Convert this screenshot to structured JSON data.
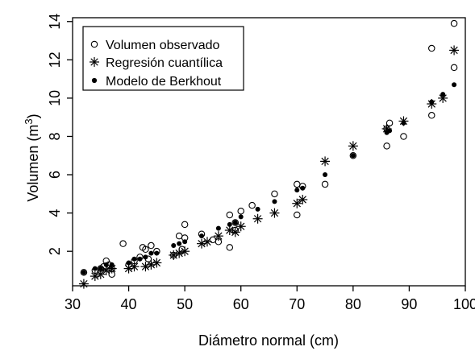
{
  "chart_data": {
    "type": "scatter",
    "xlabel": "Diámetro normal (cm)",
    "ylabel": "Volumen  (m",
    "ylabel_superscript": "3",
    "ylabel_close": ")",
    "xlim": [
      30,
      100
    ],
    "ylim": [
      0.2,
      14.2
    ],
    "x_ticks": [
      30,
      40,
      50,
      60,
      70,
      80,
      90,
      100
    ],
    "y_ticks": [
      2,
      4,
      6,
      8,
      10,
      12,
      14
    ],
    "grid": false,
    "legend_position": "top-left",
    "series": [
      {
        "name": "Volumen observado",
        "marker": "open-circle",
        "points": [
          [
            32,
            0.9
          ],
          [
            34,
            1.0
          ],
          [
            35,
            1.1
          ],
          [
            35.5,
            1.2
          ],
          [
            36,
            1.5
          ],
          [
            36.5,
            1.3
          ],
          [
            37,
            0.8
          ],
          [
            37,
            1.1
          ],
          [
            39,
            2.4
          ],
          [
            40,
            1.3
          ],
          [
            41,
            1.5
          ],
          [
            42,
            1.7
          ],
          [
            42.5,
            2.2
          ],
          [
            43,
            2.1
          ],
          [
            43.5,
            1.6
          ],
          [
            44,
            2.3
          ],
          [
            45,
            2.0
          ],
          [
            48,
            1.8
          ],
          [
            49,
            2.8
          ],
          [
            49.5,
            2.1
          ],
          [
            50,
            2.7
          ],
          [
            50,
            3.4
          ],
          [
            53,
            2.9
          ],
          [
            55,
            2.6
          ],
          [
            56,
            2.5
          ],
          [
            58,
            2.2
          ],
          [
            58,
            3.9
          ],
          [
            59,
            3.5
          ],
          [
            59,
            3.1
          ],
          [
            60,
            4.1
          ],
          [
            62,
            4.4
          ],
          [
            66,
            5.0
          ],
          [
            70,
            3.9
          ],
          [
            70,
            5.5
          ],
          [
            71,
            5.4
          ],
          [
            75,
            5.5
          ],
          [
            80,
            7.0
          ],
          [
            86,
            7.5
          ],
          [
            86,
            8.4
          ],
          [
            86.5,
            8.7
          ],
          [
            89,
            8.0
          ],
          [
            94,
            9.1
          ],
          [
            94,
            12.6
          ],
          [
            98,
            11.6
          ],
          [
            98,
            13.9
          ]
        ]
      },
      {
        "name": "Regresión cuantílica",
        "marker": "asterisk",
        "points": [
          [
            32,
            0.3
          ],
          [
            34,
            0.7
          ],
          [
            35,
            0.8
          ],
          [
            36,
            1.0
          ],
          [
            37,
            1.1
          ],
          [
            40,
            1.1
          ],
          [
            41,
            1.2
          ],
          [
            43,
            1.2
          ],
          [
            44,
            1.3
          ],
          [
            45,
            1.4
          ],
          [
            48,
            1.8
          ],
          [
            49,
            1.9
          ],
          [
            50,
            2.0
          ],
          [
            53,
            2.4
          ],
          [
            54,
            2.5
          ],
          [
            56,
            2.8
          ],
          [
            58,
            3.1
          ],
          [
            59,
            3.0
          ],
          [
            60,
            3.3
          ],
          [
            63,
            3.7
          ],
          [
            66,
            4.0
          ],
          [
            70,
            4.5
          ],
          [
            71,
            4.7
          ],
          [
            75,
            6.7
          ],
          [
            80,
            7.5
          ],
          [
            86,
            8.4
          ],
          [
            89,
            8.8
          ],
          [
            94,
            9.7
          ],
          [
            96,
            10.0
          ],
          [
            98,
            12.5
          ]
        ]
      },
      {
        "name": "Modelo de Berkhout",
        "marker": "filled-dot",
        "points": [
          [
            32,
            0.9
          ],
          [
            34,
            1.1
          ],
          [
            35,
            1.1
          ],
          [
            36,
            1.3
          ],
          [
            37,
            1.3
          ],
          [
            40,
            1.4
          ],
          [
            41,
            1.6
          ],
          [
            42,
            1.6
          ],
          [
            43,
            1.7
          ],
          [
            44,
            1.9
          ],
          [
            45,
            1.9
          ],
          [
            48,
            2.3
          ],
          [
            49,
            2.4
          ],
          [
            50,
            2.5
          ],
          [
            53,
            2.8
          ],
          [
            56,
            3.2
          ],
          [
            58,
            3.4
          ],
          [
            59,
            3.5
          ],
          [
            60,
            3.8
          ],
          [
            63,
            4.2
          ],
          [
            66,
            4.6
          ],
          [
            70,
            5.2
          ],
          [
            71,
            5.3
          ],
          [
            75,
            6.0
          ],
          [
            80,
            7.0
          ],
          [
            86,
            8.2
          ],
          [
            86.5,
            8.3
          ],
          [
            89,
            8.7
          ],
          [
            94,
            9.8
          ],
          [
            96,
            10.2
          ],
          [
            98,
            10.7
          ]
        ]
      }
    ]
  },
  "colors": {
    "ink": "#000000",
    "background": "#ffffff"
  }
}
